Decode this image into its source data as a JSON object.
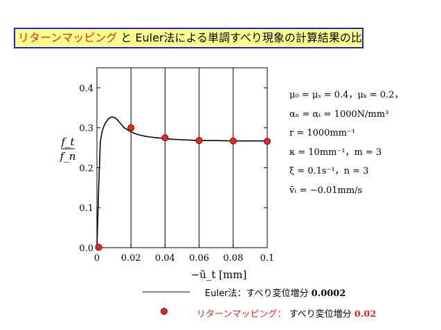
{
  "title": {
    "part1": "リターンマッピング",
    "part2": "と",
    "part3": "Euler法による単調すべり現象の計算結果の比較"
  },
  "chart_data": {
    "type": "line",
    "xlabel": "−ū_t [mm]",
    "ylabel_num": "f_t",
    "ylabel_den": "f_n",
    "xlim": [
      0,
      0.1
    ],
    "ylim": [
      0,
      0.45
    ],
    "x_ticks": [
      "0",
      "0.02",
      "0.04",
      "0.06",
      "0.08",
      "0.1"
    ],
    "y_ticks": [
      "0.0",
      "0.1",
      "0.2",
      "0.3",
      "0.4"
    ],
    "grid": "vertical",
    "series": [
      {
        "name": "Euler法: すべり変位増分 0.0002",
        "style": "line",
        "color": "#000000",
        "x": [
          0,
          0.001,
          0.002,
          0.003,
          0.004,
          0.005,
          0.006,
          0.007,
          0.008,
          0.009,
          0.01,
          0.011,
          0.012,
          0.013,
          0.014,
          0.015,
          0.016,
          0.018,
          0.02,
          0.022,
          0.025,
          0.028,
          0.031,
          0.035,
          0.04,
          0.045,
          0.05,
          0.055,
          0.06,
          0.07,
          0.08,
          0.09,
          0.1
        ],
        "y": [
          0,
          0.15,
          0.265,
          0.29,
          0.303,
          0.312,
          0.318,
          0.323,
          0.326,
          0.327,
          0.326,
          0.324,
          0.32,
          0.315,
          0.31,
          0.305,
          0.3,
          0.295,
          0.29,
          0.286,
          0.282,
          0.279,
          0.277,
          0.275,
          0.273,
          0.271,
          0.27,
          0.269,
          0.268,
          0.268,
          0.267,
          0.267,
          0.267
        ]
      },
      {
        "name": "リターンマッピング: すべり変位増分 0.02",
        "style": "markers",
        "color": "#e8291c",
        "x": [
          0.001,
          0.02,
          0.04,
          0.06,
          0.08,
          0.1
        ],
        "y": [
          0.001,
          0.3,
          0.275,
          0.268,
          0.267,
          0.266
        ]
      }
    ]
  },
  "params": [
    "μ₀ = μₛ = 0.4，μₖ = 0.2，",
    "αₙ = αₜ = 1000N/mm³",
    "r = 1000mm⁻¹",
    "κ = 10mm⁻¹，m = 3",
    "ξ = 0.1s⁻¹，n = 3",
    "v̄ₜ = −0.01mm/s"
  ],
  "legend": {
    "line_label_text": "Euler法：すべり変位増分",
    "line_label_value": "0.0002",
    "dot_label_method": "リターンマッピング：",
    "dot_label_text": "すべり変位増分",
    "dot_label_value": "0.02"
  }
}
